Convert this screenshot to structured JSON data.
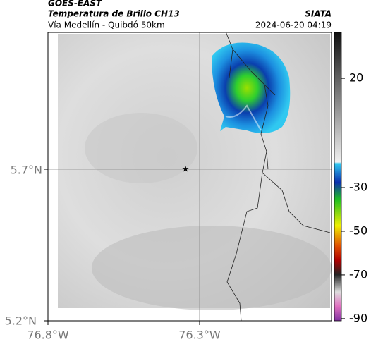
{
  "header": {
    "satellite": "GOES-EAST",
    "product": "Temperatura de Brillo CH13",
    "region": "Vía Medellín - Quibdó 50km",
    "source": "SIATA",
    "datetime": "2024-06-20 04:19"
  },
  "axes": {
    "lat_ticks": [
      "5.7°N",
      "5.2°N"
    ],
    "lon_ticks": [
      "76.8°W",
      "76.3°W"
    ]
  },
  "colorbar": {
    "clim": [
      41,
      -91
    ],
    "ticks": [
      20,
      -30,
      -50,
      -70,
      -90
    ]
  }
}
